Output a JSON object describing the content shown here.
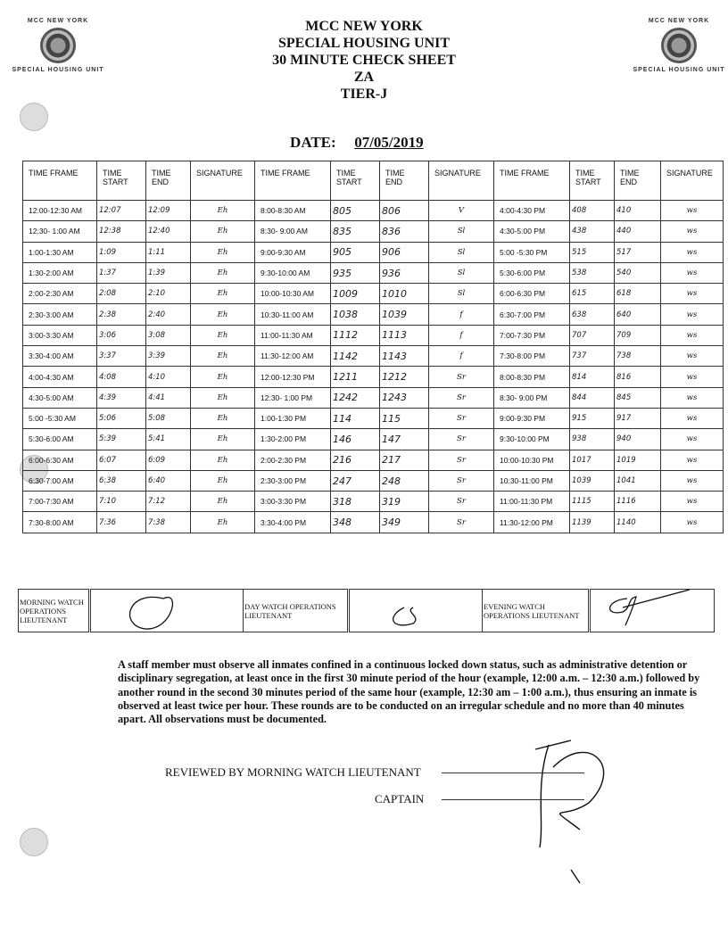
{
  "logos": {
    "top": "MCC NEW YORK",
    "bottom": "SPECIAL HOUSING UNIT",
    "seal": "SHU"
  },
  "header": {
    "line1": "MCC NEW YORK",
    "line2": "SPECIAL HOUSING UNIT",
    "line3": "30 MINUTE CHECK SHEET",
    "line4": "ZA",
    "line5": "TIER-J"
  },
  "date": {
    "label": "DATE:",
    "value": "07/05/2019"
  },
  "columns": [
    "TIME FRAME",
    "TIME START",
    "TIME END",
    "SIGNATURE",
    "TIME FRAME",
    "TIME START",
    "TIME END",
    "SIGNATURE",
    "TIME FRAME",
    "TIME START",
    "TIME END",
    "SIGNATURE"
  ],
  "rows": [
    [
      [
        "12:00-12:30 AM",
        "12:07",
        "12:09",
        "Eh"
      ],
      [
        "8:00-8:30 AM",
        "805",
        "806",
        "V"
      ],
      [
        "4:00-4:30 PM",
        "408",
        "410",
        "ws"
      ]
    ],
    [
      [
        "12:30- 1:00 AM",
        "12:38",
        "12:40",
        "Eh"
      ],
      [
        "8:30- 9:00 AM",
        "835",
        "836",
        "Sl"
      ],
      [
        "4:30-5:00 PM",
        "438",
        "440",
        "ws"
      ]
    ],
    [
      [
        "1:00-1:30 AM",
        "1:09",
        "1:11",
        "Eh"
      ],
      [
        "9:00-9:30 AM",
        "905",
        "906",
        "Sl"
      ],
      [
        "5:00 -5:30 PM",
        "515",
        "517",
        "ws"
      ]
    ],
    [
      [
        "1:30-2:00 AM",
        "1:37",
        "1:39",
        "Eh"
      ],
      [
        "9:30-10:00 AM",
        "935",
        "936",
        "Sl"
      ],
      [
        "5:30-6:00 PM",
        "538",
        "540",
        "ws"
      ]
    ],
    [
      [
        "2:00-2:30 AM",
        "2:08",
        "2:10",
        "Eh"
      ],
      [
        "10:00-10:30 AM",
        "1009",
        "1010",
        "Sl"
      ],
      [
        "6:00-6:30 PM",
        "615",
        "618",
        "ws"
      ]
    ],
    [
      [
        "2:30-3:00 AM",
        "2:38",
        "2:40",
        "Eh"
      ],
      [
        "10:30-11:00 AM",
        "1038",
        "1039",
        "f"
      ],
      [
        "6:30-7:00 PM",
        "638",
        "640",
        "ws"
      ]
    ],
    [
      [
        "3:00-3:30 AM",
        "3:06",
        "3:08",
        "Eh"
      ],
      [
        "11:00-11:30 AM",
        "1112",
        "1113",
        "f"
      ],
      [
        "7:00-7:30 PM",
        "707",
        "709",
        "ws"
      ]
    ],
    [
      [
        "3:30-4:00 AM",
        "3:37",
        "3:39",
        "Eh"
      ],
      [
        "11:30-12:00 AM",
        "1142",
        "1143",
        "f"
      ],
      [
        "7:30-8:00 PM",
        "737",
        "738",
        "ws"
      ]
    ],
    [
      [
        "4:00-4:30 AM",
        "4:08",
        "4:10",
        "Eh"
      ],
      [
        "12:00-12:30 PM",
        "1211",
        "1212",
        "Sr"
      ],
      [
        "8:00-8:30 PM",
        "814",
        "816",
        "ws"
      ]
    ],
    [
      [
        "4:30-5:00 AM",
        "4:39",
        "4:41",
        "Eh"
      ],
      [
        "12:30- 1:00 PM",
        "1242",
        "1243",
        "Sr"
      ],
      [
        "8:30- 9:00 PM",
        "844",
        "845",
        "ws"
      ]
    ],
    [
      [
        "5:00 -5:30 AM",
        "5:06",
        "5:08",
        "Eh"
      ],
      [
        "1:00-1:30 PM",
        "114",
        "115",
        "Sr"
      ],
      [
        "9:00-9:30 PM",
        "915",
        "917",
        "ws"
      ]
    ],
    [
      [
        "5:30-6:00 AM",
        "5:39",
        "5:41",
        "Eh"
      ],
      [
        "1:30-2:00 PM",
        "146",
        "147",
        "Sr"
      ],
      [
        "9:30-10:00 PM",
        "938",
        "940",
        "ws"
      ]
    ],
    [
      [
        "6:00-6:30 AM",
        "6:07",
        "6:09",
        "Eh"
      ],
      [
        "2:00-2:30 PM",
        "216",
        "217",
        "Sr"
      ],
      [
        "10:00-10:30 PM",
        "1017",
        "1019",
        "ws"
      ]
    ],
    [
      [
        "6:30-7:00 AM",
        "6:38",
        "6:40",
        "Eh"
      ],
      [
        "2:30-3:00 PM",
        "247",
        "248",
        "Sr"
      ],
      [
        "10:30-11:00 PM",
        "1039",
        "1041",
        "ws"
      ]
    ],
    [
      [
        "7:00-7:30 AM",
        "7:10",
        "7:12",
        "Eh"
      ],
      [
        "3:00-3:30 PM",
        "318",
        "319",
        "Sr"
      ],
      [
        "11:00-11:30 PM",
        "1115",
        "1116",
        "ws"
      ]
    ],
    [
      [
        "7:30-8:00 AM",
        "7:36",
        "7:38",
        "Eh"
      ],
      [
        "3:30-4:00 PM",
        "348",
        "349",
        "Sr"
      ],
      [
        "11:30-12:00 PM",
        "1139",
        "1140",
        "ws"
      ]
    ]
  ],
  "watch": {
    "morning": "MORNING WATCH OPERATIONS LIEUTENANT",
    "day": "DAY WATCH OPERATIONS LIEUTENANT",
    "evening": "EVENING WATCH OPERATIONS LIEUTENANT"
  },
  "policy": "A staff member must observe all inmates confined in a continuous locked down status, such as administrative detention or disciplinary segregation, at least once in the first 30 minute period of the hour (example, 12:00 a.m. – 12:30 a.m.) followed by another round in the second 30 minutes period of the same hour (example, 12:30 am – 1:00 a.m.), thus ensuring an inmate is observed at least twice per hour. These rounds are to be conducted on an irregular schedule and no more than 40 minutes apart. All observations must be documented.",
  "review": {
    "reviewed_label": "REVIEWED BY MORNING WATCH LIEUTENANT",
    "captain_label": "CAPTAIN"
  }
}
